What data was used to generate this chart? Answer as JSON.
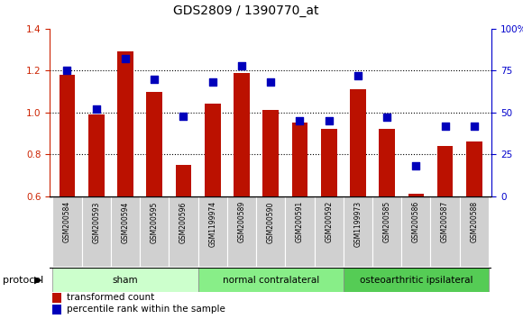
{
  "title": "GDS2809 / 1390770_at",
  "samples": [
    "GSM200584",
    "GSM200593",
    "GSM200594",
    "GSM200595",
    "GSM200596",
    "GSM1199974",
    "GSM200589",
    "GSM200590",
    "GSM200591",
    "GSM200592",
    "GSM1199973",
    "GSM200585",
    "GSM200586",
    "GSM200587",
    "GSM200588"
  ],
  "red_values": [
    1.18,
    0.99,
    1.29,
    1.1,
    0.75,
    1.04,
    1.19,
    1.01,
    0.95,
    0.92,
    1.11,
    0.92,
    0.61,
    0.84,
    0.86
  ],
  "blue_values": [
    75,
    52,
    82,
    70,
    48,
    68,
    78,
    68,
    45,
    45,
    72,
    47,
    18,
    42,
    42
  ],
  "ylim_left": [
    0.6,
    1.4
  ],
  "ylim_right": [
    0,
    100
  ],
  "yticks_left": [
    0.6,
    0.8,
    1.0,
    1.2,
    1.4
  ],
  "yticks_right": [
    0,
    25,
    50,
    75,
    100
  ],
  "groups": [
    {
      "label": "sham",
      "start": 0,
      "end": 4,
      "color": "#ccffcc"
    },
    {
      "label": "normal contralateral",
      "start": 5,
      "end": 9,
      "color": "#88ee88"
    },
    {
      "label": "osteoarthritic ipsilateral",
      "start": 10,
      "end": 14,
      "color": "#55cc55"
    }
  ],
  "bar_color": "#bb1100",
  "dot_color": "#0000bb",
  "bar_width": 0.55,
  "dot_size": 30,
  "left_axis_color": "#cc2200",
  "right_axis_color": "#0000cc",
  "protocol_label": "protocol",
  "legend_items": [
    "transformed count",
    "percentile rank within the sample"
  ],
  "legend_colors": [
    "#bb1100",
    "#0000bb"
  ]
}
